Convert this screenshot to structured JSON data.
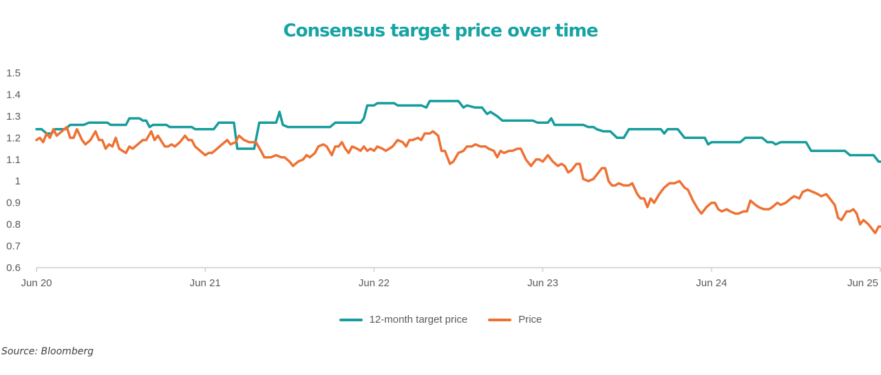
{
  "chart_data": {
    "type": "line",
    "title": "Consensus target price over time",
    "xlabel": "",
    "ylabel": "",
    "ylim": [
      0.6,
      1.5
    ],
    "yticks": [
      "1.5",
      "1.4",
      "1.3",
      "1.2",
      "1.1",
      "1",
      "0.9",
      "0.8",
      "0.7",
      "0.6"
    ],
    "ytick_values": [
      1.5,
      1.4,
      1.3,
      1.2,
      1.1,
      1.0,
      0.9,
      0.8,
      0.7,
      0.6
    ],
    "xticks": [
      "Jun 20",
      "Jun 21",
      "Jun 22",
      "Jun 23",
      "Jun 24",
      "Jun 25"
    ],
    "x_unit": "years since Jun 2020",
    "xlim": [
      0,
      5
    ],
    "grid": false,
    "legend_position": "bottom",
    "series": [
      {
        "name": "12-month target price",
        "color": "#169c9c",
        "points": [
          [
            0.0,
            1.24
          ],
          [
            0.03,
            1.24
          ],
          [
            0.06,
            1.22
          ],
          [
            0.09,
            1.22
          ],
          [
            0.11,
            1.24
          ],
          [
            0.17,
            1.24
          ],
          [
            0.2,
            1.26
          ],
          [
            0.28,
            1.26
          ],
          [
            0.31,
            1.27
          ],
          [
            0.42,
            1.27
          ],
          [
            0.44,
            1.26
          ],
          [
            0.53,
            1.26
          ],
          [
            0.55,
            1.29
          ],
          [
            0.61,
            1.29
          ],
          [
            0.63,
            1.28
          ],
          [
            0.65,
            1.28
          ],
          [
            0.67,
            1.25
          ],
          [
            0.69,
            1.26
          ],
          [
            0.77,
            1.26
          ],
          [
            0.79,
            1.25
          ],
          [
            0.92,
            1.25
          ],
          [
            0.94,
            1.24
          ],
          [
            1.05,
            1.24
          ],
          [
            1.08,
            1.27
          ],
          [
            1.17,
            1.27
          ],
          [
            1.19,
            1.15
          ],
          [
            1.29,
            1.15
          ],
          [
            1.32,
            1.27
          ],
          [
            1.42,
            1.27
          ],
          [
            1.44,
            1.32
          ],
          [
            1.46,
            1.26
          ],
          [
            1.49,
            1.25
          ],
          [
            1.74,
            1.25
          ],
          [
            1.77,
            1.27
          ],
          [
            1.92,
            1.27
          ],
          [
            1.94,
            1.29
          ],
          [
            1.96,
            1.35
          ],
          [
            2.0,
            1.35
          ],
          [
            2.02,
            1.36
          ],
          [
            2.12,
            1.36
          ],
          [
            2.14,
            1.35
          ],
          [
            2.28,
            1.35
          ],
          [
            2.31,
            1.34
          ],
          [
            2.33,
            1.37
          ],
          [
            2.5,
            1.37
          ],
          [
            2.53,
            1.34
          ],
          [
            2.55,
            1.35
          ],
          [
            2.6,
            1.34
          ],
          [
            2.64,
            1.34
          ],
          [
            2.67,
            1.31
          ],
          [
            2.69,
            1.32
          ],
          [
            2.73,
            1.3
          ],
          [
            2.76,
            1.28
          ],
          [
            2.94,
            1.28
          ],
          [
            2.97,
            1.27
          ],
          [
            3.03,
            1.27
          ],
          [
            3.05,
            1.29
          ],
          [
            3.07,
            1.26
          ],
          [
            3.24,
            1.26
          ],
          [
            3.27,
            1.25
          ],
          [
            3.3,
            1.25
          ],
          [
            3.32,
            1.24
          ],
          [
            3.36,
            1.23
          ],
          [
            3.4,
            1.23
          ],
          [
            3.44,
            1.2
          ],
          [
            3.48,
            1.2
          ],
          [
            3.51,
            1.24
          ],
          [
            3.7,
            1.24
          ],
          [
            3.72,
            1.22
          ],
          [
            3.74,
            1.24
          ],
          [
            3.8,
            1.24
          ],
          [
            3.84,
            1.2
          ],
          [
            3.96,
            1.2
          ],
          [
            3.98,
            1.17
          ],
          [
            4.0,
            1.18
          ],
          [
            4.17,
            1.18
          ],
          [
            4.2,
            1.2
          ],
          [
            4.3,
            1.2
          ],
          [
            4.33,
            1.18
          ],
          [
            4.36,
            1.18
          ],
          [
            4.38,
            1.17
          ],
          [
            4.41,
            1.18
          ],
          [
            4.56,
            1.18
          ],
          [
            4.59,
            1.14
          ],
          [
            4.79,
            1.14
          ],
          [
            4.82,
            1.12
          ],
          [
            4.96,
            1.12
          ],
          [
            4.99,
            1.09
          ],
          [
            5.0,
            1.09
          ]
        ]
      },
      {
        "name": "Price",
        "color": "#ee7133",
        "points": [
          [
            0.0,
            1.19
          ],
          [
            0.02,
            1.2
          ],
          [
            0.04,
            1.18
          ],
          [
            0.06,
            1.22
          ],
          [
            0.08,
            1.2
          ],
          [
            0.1,
            1.24
          ],
          [
            0.12,
            1.21
          ],
          [
            0.15,
            1.23
          ],
          [
            0.18,
            1.25
          ],
          [
            0.2,
            1.2
          ],
          [
            0.22,
            1.2
          ],
          [
            0.24,
            1.24
          ],
          [
            0.27,
            1.19
          ],
          [
            0.29,
            1.17
          ],
          [
            0.32,
            1.19
          ],
          [
            0.35,
            1.23
          ],
          [
            0.37,
            1.19
          ],
          [
            0.39,
            1.19
          ],
          [
            0.41,
            1.15
          ],
          [
            0.43,
            1.17
          ],
          [
            0.45,
            1.16
          ],
          [
            0.47,
            1.2
          ],
          [
            0.49,
            1.15
          ],
          [
            0.53,
            1.13
          ],
          [
            0.55,
            1.16
          ],
          [
            0.57,
            1.15
          ],
          [
            0.6,
            1.17
          ],
          [
            0.63,
            1.19
          ],
          [
            0.65,
            1.19
          ],
          [
            0.68,
            1.23
          ],
          [
            0.7,
            1.19
          ],
          [
            0.72,
            1.21
          ],
          [
            0.76,
            1.16
          ],
          [
            0.78,
            1.16
          ],
          [
            0.8,
            1.17
          ],
          [
            0.82,
            1.16
          ],
          [
            0.85,
            1.18
          ],
          [
            0.88,
            1.21
          ],
          [
            0.9,
            1.19
          ],
          [
            0.92,
            1.19
          ],
          [
            0.94,
            1.16
          ],
          [
            0.97,
            1.14
          ],
          [
            1.0,
            1.12
          ],
          [
            1.02,
            1.13
          ],
          [
            1.04,
            1.13
          ],
          [
            1.07,
            1.15
          ],
          [
            1.1,
            1.17
          ],
          [
            1.13,
            1.19
          ],
          [
            1.15,
            1.17
          ],
          [
            1.18,
            1.18
          ],
          [
            1.2,
            1.21
          ],
          [
            1.23,
            1.19
          ],
          [
            1.26,
            1.18
          ],
          [
            1.28,
            1.18
          ],
          [
            1.3,
            1.18
          ],
          [
            1.33,
            1.14
          ],
          [
            1.35,
            1.11
          ],
          [
            1.39,
            1.11
          ],
          [
            1.42,
            1.12
          ],
          [
            1.45,
            1.11
          ],
          [
            1.47,
            1.11
          ],
          [
            1.5,
            1.09
          ],
          [
            1.52,
            1.07
          ],
          [
            1.55,
            1.09
          ],
          [
            1.58,
            1.1
          ],
          [
            1.6,
            1.12
          ],
          [
            1.62,
            1.11
          ],
          [
            1.65,
            1.13
          ],
          [
            1.67,
            1.16
          ],
          [
            1.7,
            1.17
          ],
          [
            1.72,
            1.16
          ],
          [
            1.75,
            1.12
          ],
          [
            1.77,
            1.16
          ],
          [
            1.79,
            1.16
          ],
          [
            1.81,
            1.18
          ],
          [
            1.83,
            1.15
          ],
          [
            1.85,
            1.13
          ],
          [
            1.87,
            1.16
          ],
          [
            1.9,
            1.15
          ],
          [
            1.92,
            1.14
          ],
          [
            1.94,
            1.16
          ],
          [
            1.96,
            1.14
          ],
          [
            1.98,
            1.15
          ],
          [
            2.0,
            1.14
          ],
          [
            2.02,
            1.16
          ],
          [
            2.05,
            1.15
          ],
          [
            2.07,
            1.14
          ],
          [
            2.09,
            1.15
          ],
          [
            2.11,
            1.16
          ],
          [
            2.14,
            1.19
          ],
          [
            2.17,
            1.18
          ],
          [
            2.19,
            1.16
          ],
          [
            2.21,
            1.19
          ],
          [
            2.23,
            1.19
          ],
          [
            2.26,
            1.2
          ],
          [
            2.28,
            1.19
          ],
          [
            2.3,
            1.22
          ],
          [
            2.33,
            1.22
          ],
          [
            2.35,
            1.23
          ],
          [
            2.38,
            1.21
          ],
          [
            2.4,
            1.14
          ],
          [
            2.42,
            1.14
          ],
          [
            2.45,
            1.08
          ],
          [
            2.47,
            1.09
          ],
          [
            2.5,
            1.13
          ],
          [
            2.53,
            1.14
          ],
          [
            2.55,
            1.16
          ],
          [
            2.58,
            1.16
          ],
          [
            2.6,
            1.17
          ],
          [
            2.63,
            1.16
          ],
          [
            2.66,
            1.16
          ],
          [
            2.68,
            1.15
          ],
          [
            2.71,
            1.14
          ],
          [
            2.73,
            1.11
          ],
          [
            2.75,
            1.14
          ],
          [
            2.77,
            1.13
          ],
          [
            2.8,
            1.14
          ],
          [
            2.82,
            1.14
          ],
          [
            2.85,
            1.15
          ],
          [
            2.87,
            1.15
          ],
          [
            2.9,
            1.1
          ],
          [
            2.93,
            1.07
          ],
          [
            2.96,
            1.1
          ],
          [
            2.98,
            1.1
          ],
          [
            3.0,
            1.09
          ],
          [
            3.03,
            1.12
          ],
          [
            3.06,
            1.09
          ],
          [
            3.09,
            1.07
          ],
          [
            3.11,
            1.08
          ],
          [
            3.13,
            1.07
          ],
          [
            3.15,
            1.04
          ],
          [
            3.17,
            1.05
          ],
          [
            3.2,
            1.08
          ],
          [
            3.22,
            1.08
          ],
          [
            3.24,
            1.01
          ],
          [
            3.27,
            1.0
          ],
          [
            3.3,
            1.01
          ],
          [
            3.32,
            1.03
          ],
          [
            3.35,
            1.06
          ],
          [
            3.37,
            1.06
          ],
          [
            3.39,
            1.0
          ],
          [
            3.41,
            0.98
          ],
          [
            3.43,
            0.98
          ],
          [
            3.45,
            0.99
          ],
          [
            3.48,
            0.98
          ],
          [
            3.51,
            0.98
          ],
          [
            3.53,
            0.99
          ],
          [
            3.56,
            0.94
          ],
          [
            3.58,
            0.92
          ],
          [
            3.6,
            0.92
          ],
          [
            3.62,
            0.88
          ],
          [
            3.64,
            0.92
          ],
          [
            3.66,
            0.9
          ],
          [
            3.69,
            0.94
          ],
          [
            3.72,
            0.97
          ],
          [
            3.75,
            0.99
          ],
          [
            3.78,
            0.99
          ],
          [
            3.81,
            1.0
          ],
          [
            3.84,
            0.97
          ],
          [
            3.86,
            0.96
          ],
          [
            3.89,
            0.91
          ],
          [
            3.92,
            0.87
          ],
          [
            3.94,
            0.85
          ],
          [
            3.97,
            0.88
          ],
          [
            4.0,
            0.9
          ],
          [
            4.02,
            0.9
          ],
          [
            4.04,
            0.87
          ],
          [
            4.06,
            0.86
          ],
          [
            4.09,
            0.87
          ],
          [
            4.11,
            0.86
          ],
          [
            4.14,
            0.85
          ],
          [
            4.16,
            0.85
          ],
          [
            4.19,
            0.86
          ],
          [
            4.21,
            0.86
          ],
          [
            4.23,
            0.91
          ],
          [
            4.26,
            0.89
          ],
          [
            4.28,
            0.88
          ],
          [
            4.31,
            0.87
          ],
          [
            4.34,
            0.87
          ],
          [
            4.36,
            0.88
          ],
          [
            4.39,
            0.9
          ],
          [
            4.41,
            0.89
          ],
          [
            4.44,
            0.9
          ],
          [
            4.47,
            0.92
          ],
          [
            4.49,
            0.93
          ],
          [
            4.52,
            0.92
          ],
          [
            4.54,
            0.95
          ],
          [
            4.57,
            0.96
          ],
          [
            4.6,
            0.95
          ],
          [
            4.63,
            0.94
          ],
          [
            4.65,
            0.93
          ],
          [
            4.68,
            0.94
          ],
          [
            4.71,
            0.91
          ],
          [
            4.73,
            0.89
          ],
          [
            4.75,
            0.83
          ],
          [
            4.77,
            0.82
          ],
          [
            4.8,
            0.86
          ],
          [
            4.82,
            0.86
          ],
          [
            4.84,
            0.87
          ],
          [
            4.86,
            0.85
          ],
          [
            4.88,
            0.8
          ],
          [
            4.9,
            0.82
          ],
          [
            4.93,
            0.8
          ],
          [
            4.95,
            0.78
          ],
          [
            4.97,
            0.76
          ],
          [
            4.99,
            0.79
          ],
          [
            5.0,
            0.79
          ]
        ]
      }
    ]
  },
  "legend": {
    "items": [
      {
        "label": "12-month target price",
        "color": "#169c9c"
      },
      {
        "label": "Price",
        "color": "#ee7133"
      }
    ]
  },
  "source": "Source: Bloomberg"
}
